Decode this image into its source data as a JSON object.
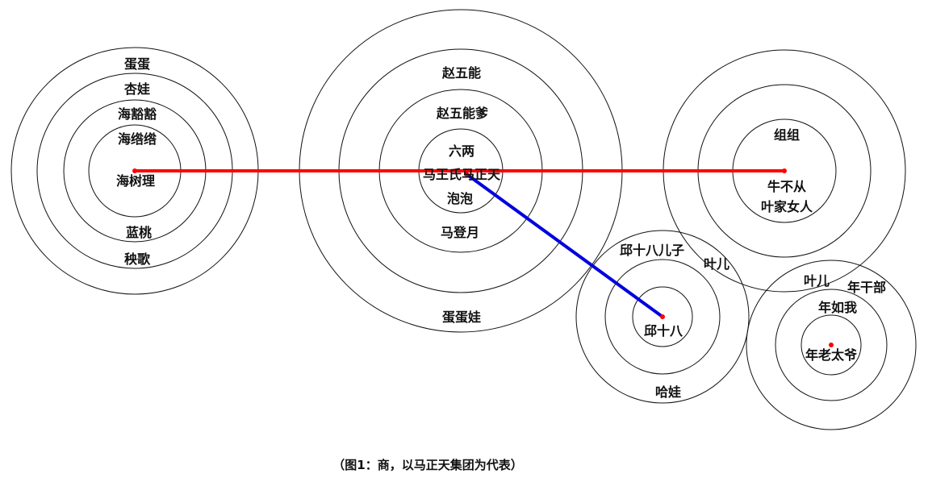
{
  "colors": {
    "background": "#ffffff",
    "ring_stroke": "#111111",
    "red_link": "#ff0000",
    "blue_link": "#0000dd",
    "center_dot": "#ff0000"
  },
  "groups": [
    {
      "labels": [
        "蛋蛋",
        "杏娃",
        "海豁豁",
        "海绺绺",
        "海树理",
        "蓝桃",
        "秧歌"
      ]
    },
    {
      "labels": [
        "赵五能",
        "赵五能爹",
        "六两",
        "马王氏马正天",
        "泡泡",
        "马登月",
        "蛋蛋娃"
      ]
    },
    {
      "labels": [
        "组组",
        "牛不从",
        "叶家女人",
        "叶儿"
      ]
    },
    {
      "labels": [
        "邱十八儿子",
        "邱十八",
        "哈娃"
      ]
    },
    {
      "labels": [
        "叶儿",
        "年干部",
        "年如我",
        "年老太爷"
      ]
    }
  ],
  "caption": "（图1：商，以马正天集团为代表）"
}
